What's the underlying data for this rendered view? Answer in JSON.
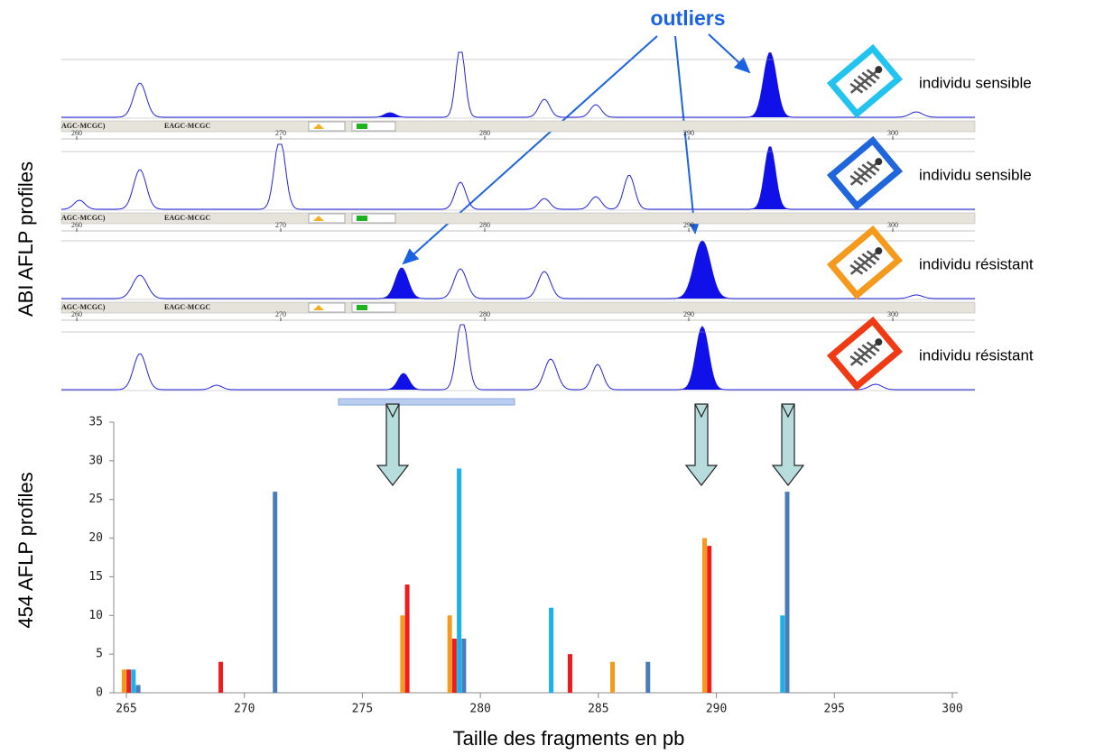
{
  "abi": {
    "axis_label": "ABI AFLP profiles",
    "annotation": "outliers",
    "profiles": [
      {
        "label": "individu sensible",
        "color": "#22c4ef"
      },
      {
        "label": "individu sensible",
        "color": "#1f66dd"
      },
      {
        "label": "individu résistant",
        "color": "#f59a1c"
      },
      {
        "label": "individu résistant",
        "color": "#ef3a14"
      }
    ],
    "ruler_ticks": [
      260,
      270,
      280,
      290,
      300
    ],
    "ruler_tags": [
      "AGC-MCGC)",
      "EAGC-MCGC"
    ]
  },
  "chart_data": {
    "type": "bar",
    "xlabel": "Taille des fragments en pb",
    "ylabel": "454 AFLP profiles",
    "xlim": [
      265,
      300
    ],
    "xticks": [
      265,
      270,
      275,
      280,
      285,
      290,
      295,
      300
    ],
    "ylim": [
      0,
      35
    ],
    "yticks": [
      0,
      5,
      10,
      15,
      20,
      25,
      30,
      35
    ],
    "series": [
      {
        "color": "#f59a1c",
        "x": [
          264.9,
          276.7,
          278.7,
          285.6,
          289.5
        ],
        "values": [
          3,
          10,
          10,
          4,
          20
        ]
      },
      {
        "color": "#ee1c1c",
        "x": [
          265.1,
          269.0,
          276.9,
          278.9,
          283.8,
          289.7
        ],
        "values": [
          3,
          4,
          14,
          7,
          5,
          19
        ]
      },
      {
        "color": "#19b2ea",
        "x": [
          265.3,
          279.1,
          283.0,
          292.8
        ],
        "values": [
          3,
          29,
          11,
          10
        ]
      },
      {
        "color": "#4a7db8",
        "x": [
          265.5,
          271.3,
          279.3,
          287.1,
          293.0
        ],
        "values": [
          1,
          26,
          7,
          4,
          26
        ]
      }
    ]
  }
}
